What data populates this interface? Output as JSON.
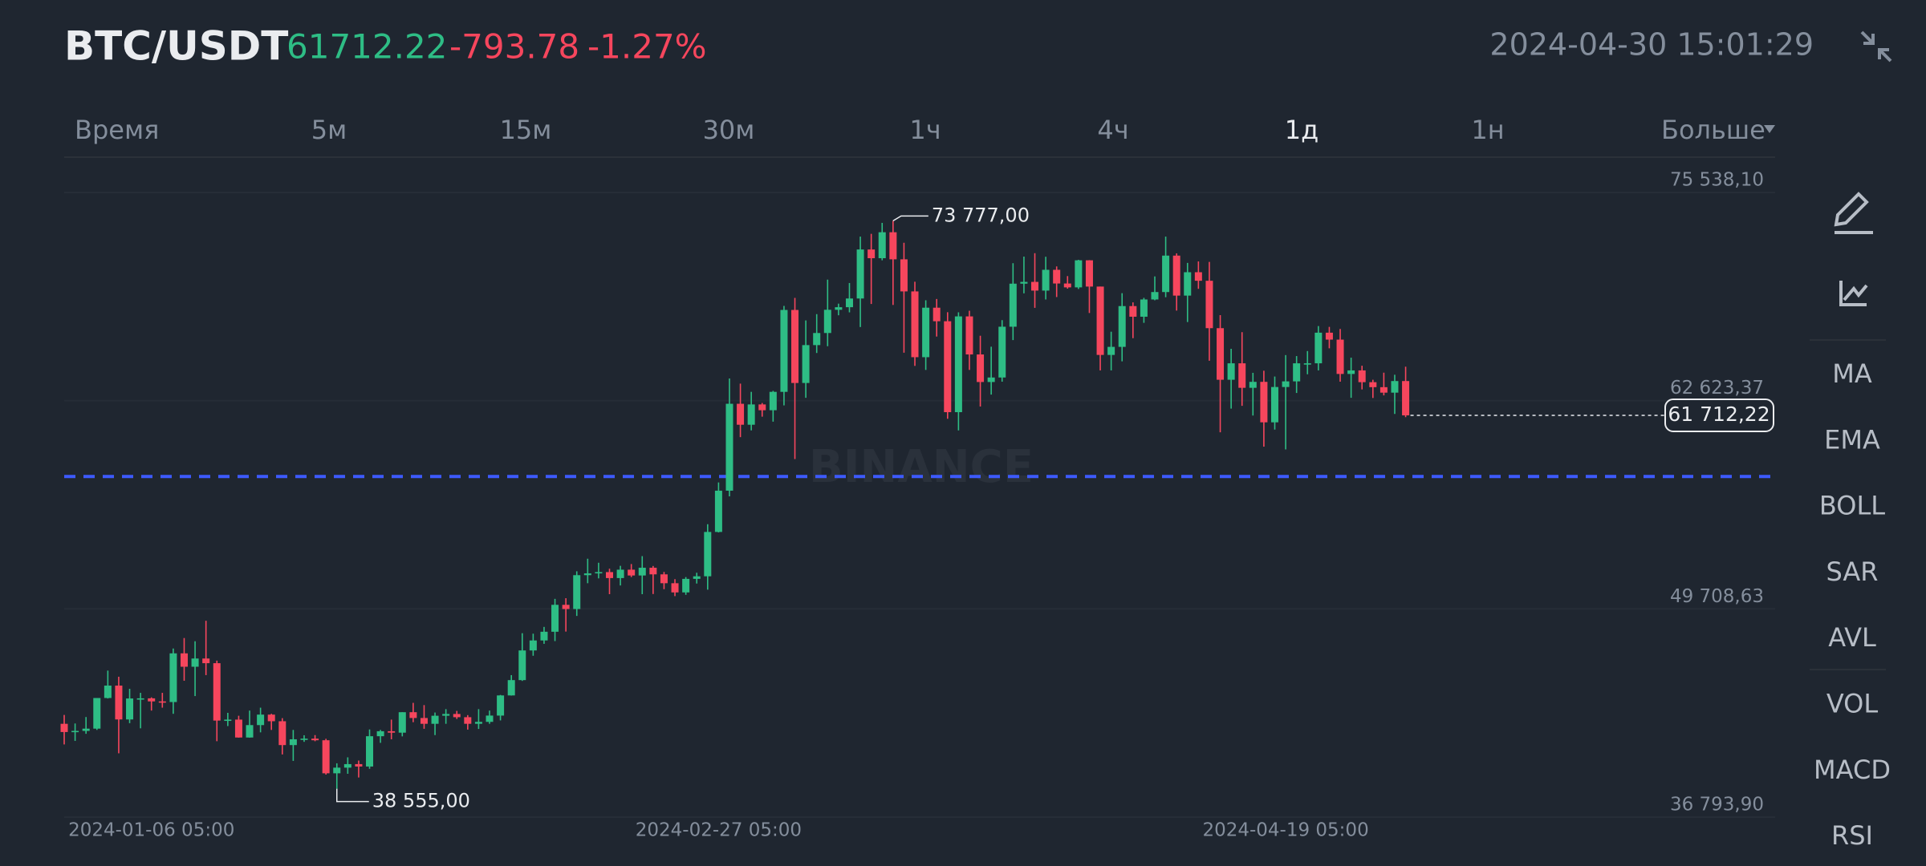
{
  "header": {
    "pair": "BTC/USDT",
    "price": 61712.22,
    "change": -793.78,
    "change_pct": {
      "value": -1.27,
      "label": "-1.27%"
    },
    "datetime": "2024-04-30 15:01:29"
  },
  "toolbar": {
    "timeframes": [
      "Время",
      "5м",
      "15м",
      "30м",
      "1ч",
      "4ч",
      "1д",
      "1н",
      "Больше"
    ],
    "active": "1д"
  },
  "sidebar": {
    "indicators": [
      "MA",
      "EMA",
      "BOLL",
      "SAR",
      "AVL",
      "VOL",
      "MACD",
      "RSI"
    ]
  },
  "watermark": "BINANCE",
  "chart_data": {
    "type": "candlestick",
    "up_color": "#2ebd85",
    "down_color": "#f6465d",
    "ylim": [
      36793.9,
      75538.1
    ],
    "yticks": [
      {
        "value": 36793.9,
        "label": "36 793,90"
      },
      {
        "value": 49708.63,
        "label": "49 708,63"
      },
      {
        "value": 62623.37,
        "label": "62 623,37"
      },
      {
        "value": 75538.1,
        "label": "75 538,10"
      }
    ],
    "xticks": [
      "2024-01-06 05:00",
      "2024-02-27 05:00",
      "2024-04-19 05:00"
    ],
    "high_label": {
      "value": 73777,
      "label": "73 777,00"
    },
    "low_label": {
      "value": 38555,
      "label": "38 555,00"
    },
    "last_price": {
      "value": 61712.22,
      "label": "61 712,22"
    },
    "price_line": {
      "value": 57920,
      "color": "#3d5afe"
    },
    "x": [
      "2023-12-29 05:00",
      "2023-12-30 05:00",
      "2023-12-31 05:00",
      "2024-01-01 05:00",
      "2024-01-02 05:00",
      "2024-01-03 05:00",
      "2024-01-04 05:00",
      "2024-01-05 05:00",
      "2024-01-06 05:00",
      "2024-01-07 05:00",
      "2024-01-08 05:00",
      "2024-01-09 05:00",
      "2024-01-10 05:00",
      "2024-01-11 05:00",
      "2024-01-12 05:00",
      "2024-01-13 05:00",
      "2024-01-14 05:00",
      "2024-01-15 05:00",
      "2024-01-16 05:00",
      "2024-01-17 05:00",
      "2024-01-18 05:00",
      "2024-01-19 05:00",
      "2024-01-20 05:00",
      "2024-01-21 05:00",
      "2024-01-22 05:00",
      "2024-01-23 05:00",
      "2024-01-24 05:00",
      "2024-01-25 05:00",
      "2024-01-26 05:00",
      "2024-01-27 05:00",
      "2024-01-28 05:00",
      "2024-01-29 05:00",
      "2024-01-30 05:00",
      "2024-01-31 05:00",
      "2024-02-01 05:00",
      "2024-02-02 05:00",
      "2024-02-03 05:00",
      "2024-02-04 05:00",
      "2024-02-05 05:00",
      "2024-02-06 05:00",
      "2024-02-07 05:00",
      "2024-02-08 05:00",
      "2024-02-09 05:00",
      "2024-02-10 05:00",
      "2024-02-11 05:00",
      "2024-02-12 05:00",
      "2024-02-13 05:00",
      "2024-02-14 05:00",
      "2024-02-15 05:00",
      "2024-02-16 05:00",
      "2024-02-17 05:00",
      "2024-02-18 05:00",
      "2024-02-19 05:00",
      "2024-02-20 05:00",
      "2024-02-21 05:00",
      "2024-02-22 05:00",
      "2024-02-23 05:00",
      "2024-02-24 05:00",
      "2024-02-25 05:00",
      "2024-02-26 05:00",
      "2024-02-27 05:00",
      "2024-02-28 05:00",
      "2024-02-29 05:00",
      "2024-03-01 05:00",
      "2024-03-02 05:00",
      "2024-03-03 05:00",
      "2024-03-04 05:00",
      "2024-03-05 05:00",
      "2024-03-06 05:00",
      "2024-03-07 05:00",
      "2024-03-08 05:00",
      "2024-03-09 05:00",
      "2024-03-10 05:00",
      "2024-03-11 05:00",
      "2024-03-12 05:00",
      "2024-03-13 05:00",
      "2024-03-14 05:00",
      "2024-03-15 05:00",
      "2024-03-16 05:00",
      "2024-03-17 05:00",
      "2024-03-18 05:00",
      "2024-03-19 05:00",
      "2024-03-20 05:00",
      "2024-03-21 05:00",
      "2024-03-22 05:00",
      "2024-03-23 05:00",
      "2024-03-24 05:00",
      "2024-03-25 05:00",
      "2024-03-26 05:00",
      "2024-03-27 05:00",
      "2024-03-28 05:00",
      "2024-03-29 05:00",
      "2024-03-30 05:00",
      "2024-03-31 05:00",
      "2024-04-01 05:00",
      "2024-04-02 05:00",
      "2024-04-03 05:00",
      "2024-04-04 05:00",
      "2024-04-05 05:00",
      "2024-04-06 05:00",
      "2024-04-07 05:00",
      "2024-04-08 05:00",
      "2024-04-09 05:00",
      "2024-04-10 05:00",
      "2024-04-11 05:00",
      "2024-04-12 05:00",
      "2024-04-13 05:00",
      "2024-04-14 05:00",
      "2024-04-15 05:00",
      "2024-04-16 05:00",
      "2024-04-17 05:00",
      "2024-04-18 05:00",
      "2024-04-19 05:00",
      "2024-04-20 05:00",
      "2024-04-21 05:00",
      "2024-04-22 05:00",
      "2024-04-23 05:00",
      "2024-04-24 05:00",
      "2024-04-25 05:00",
      "2024-04-26 05:00",
      "2024-04-27 05:00",
      "2024-04-28 05:00",
      "2024-04-29 05:00",
      "2024-04-30 05:00"
    ],
    "ohlc": [
      [
        42580,
        43130,
        41300,
        42070
      ],
      [
        42070,
        42600,
        41520,
        42140
      ],
      [
        42140,
        43000,
        41960,
        42280
      ],
      [
        42280,
        44180,
        42200,
        44180
      ],
      [
        44180,
        45880,
        44150,
        44950
      ],
      [
        44950,
        45500,
        40750,
        42850
      ],
      [
        42850,
        44750,
        42620,
        44150
      ],
      [
        44150,
        44500,
        42300,
        44160
      ],
      [
        44160,
        44220,
        43400,
        43970
      ],
      [
        43970,
        44500,
        43580,
        43930
      ],
      [
        43930,
        47250,
        43200,
        46950
      ],
      [
        46950,
        47900,
        45250,
        46120
      ],
      [
        46120,
        47700,
        44300,
        46630
      ],
      [
        46630,
        48970,
        45600,
        46340
      ],
      [
        46340,
        46500,
        41500,
        42780
      ],
      [
        42780,
        43260,
        42440,
        42840
      ],
      [
        42840,
        43080,
        41720,
        41730
      ],
      [
        41730,
        43400,
        41720,
        42500
      ],
      [
        42500,
        43580,
        42050,
        43150
      ],
      [
        43150,
        43200,
        42200,
        42740
      ],
      [
        42740,
        42930,
        40680,
        41260
      ],
      [
        41260,
        42200,
        40280,
        41620
      ],
      [
        41620,
        41870,
        41460,
        41660
      ],
      [
        41660,
        41880,
        41500,
        41560
      ],
      [
        41560,
        41650,
        39430,
        39510
      ],
      [
        39510,
        40130,
        38555,
        39860
      ],
      [
        39860,
        40500,
        39480,
        40080
      ],
      [
        40080,
        40300,
        39250,
        39930
      ],
      [
        39930,
        42230,
        39790,
        41810
      ],
      [
        41810,
        42200,
        41400,
        42120
      ],
      [
        42120,
        42840,
        41620,
        42030
      ],
      [
        42030,
        43300,
        41800,
        43300
      ],
      [
        43300,
        43880,
        42680,
        42940
      ],
      [
        42940,
        43740,
        42270,
        42580
      ],
      [
        42580,
        43280,
        41880,
        43080
      ],
      [
        43080,
        43490,
        42580,
        43190
      ],
      [
        43190,
        43380,
        42880,
        42990
      ],
      [
        42990,
        43120,
        42220,
        42580
      ],
      [
        42580,
        43490,
        42260,
        42700
      ],
      [
        42700,
        43400,
        42580,
        43090
      ],
      [
        43090,
        44370,
        42790,
        44340
      ],
      [
        44340,
        45600,
        44330,
        45290
      ],
      [
        45290,
        48200,
        45240,
        47130
      ],
      [
        47130,
        48170,
        46800,
        47750
      ],
      [
        47750,
        48590,
        47540,
        48290
      ],
      [
        48290,
        50330,
        47710,
        49960
      ],
      [
        49960,
        50370,
        48300,
        49700
      ],
      [
        49700,
        52040,
        49270,
        51800
      ],
      [
        51800,
        52820,
        51300,
        51910
      ],
      [
        51910,
        52570,
        51600,
        51990
      ],
      [
        51990,
        52200,
        50620,
        51620
      ],
      [
        51620,
        52380,
        51160,
        52140
      ],
      [
        52140,
        52490,
        51680,
        51780
      ],
      [
        51780,
        52980,
        50620,
        52260
      ],
      [
        52260,
        52370,
        50630,
        51850
      ],
      [
        51850,
        52000,
        50930,
        51300
      ],
      [
        51300,
        51550,
        50500,
        50730
      ],
      [
        50730,
        51680,
        50580,
        51570
      ],
      [
        51570,
        51950,
        51280,
        51730
      ],
      [
        51730,
        54960,
        50900,
        54480
      ],
      [
        54480,
        57550,
        54450,
        57040
      ],
      [
        57040,
        64000,
        56690,
        62430
      ],
      [
        62430,
        63680,
        60360,
        61130
      ],
      [
        61130,
        63170,
        60780,
        62390
      ],
      [
        62390,
        62480,
        61630,
        62030
      ],
      [
        62030,
        63230,
        61320,
        63170
      ],
      [
        63170,
        68500,
        62330,
        68250
      ],
      [
        68250,
        69000,
        59000,
        63720
      ],
      [
        63720,
        67600,
        62800,
        66070
      ],
      [
        66070,
        67990,
        65580,
        66820
      ],
      [
        66820,
        70130,
        66000,
        68260
      ],
      [
        68260,
        68640,
        67920,
        68420
      ],
      [
        68420,
        69920,
        68100,
        68960
      ],
      [
        68960,
        72800,
        67190,
        72000
      ],
      [
        72000,
        72970,
        68620,
        71460
      ],
      [
        71460,
        73650,
        71330,
        73070
      ],
      [
        73070,
        73777,
        68560,
        71390
      ],
      [
        71390,
        72420,
        65600,
        69400
      ],
      [
        69400,
        70000,
        64780,
        65320
      ],
      [
        65320,
        68850,
        64530,
        68390
      ],
      [
        68390,
        68930,
        66600,
        67550
      ],
      [
        67550,
        68110,
        61500,
        61910
      ],
      [
        61910,
        68100,
        60780,
        67850
      ],
      [
        67850,
        68200,
        64530,
        65490
      ],
      [
        65490,
        66650,
        62260,
        63780
      ],
      [
        63780,
        65970,
        63000,
        64060
      ],
      [
        64060,
        67620,
        63800,
        67210
      ],
      [
        67210,
        71150,
        66380,
        69880
      ],
      [
        69880,
        71560,
        69280,
        69990
      ],
      [
        69990,
        71770,
        68380,
        69450
      ],
      [
        69450,
        71550,
        68900,
        70740
      ],
      [
        70740,
        70950,
        69050,
        69890
      ],
      [
        69890,
        70350,
        69570,
        69650
      ],
      [
        69650,
        71360,
        69550,
        71330
      ],
      [
        71330,
        71340,
        68060,
        69700
      ],
      [
        69700,
        69700,
        64500,
        65460
      ],
      [
        65460,
        66900,
        64500,
        65960
      ],
      [
        65960,
        69290,
        65060,
        68490
      ],
      [
        68490,
        68720,
        66500,
        67830
      ],
      [
        67830,
        69000,
        67450,
        68900
      ],
      [
        68900,
        70330,
        68850,
        69360
      ],
      [
        69360,
        72800,
        69040,
        71620
      ],
      [
        71620,
        71760,
        68210,
        69140
      ],
      [
        69140,
        71170,
        67500,
        70590
      ],
      [
        70590,
        71260,
        69560,
        70060
      ],
      [
        70060,
        71230,
        65100,
        67120
      ],
      [
        67120,
        67930,
        60660,
        63920
      ],
      [
        63920,
        65840,
        62130,
        64940
      ],
      [
        64940,
        66870,
        62300,
        63420
      ],
      [
        63420,
        64350,
        61700,
        63790
      ],
      [
        63790,
        64480,
        59770,
        61280
      ],
      [
        61280,
        64120,
        60830,
        63470
      ],
      [
        63470,
        65450,
        59600,
        63820
      ],
      [
        63820,
        65390,
        63100,
        64940
      ],
      [
        64940,
        65700,
        64260,
        64940
      ],
      [
        64940,
        67250,
        64500,
        66840
      ],
      [
        66840,
        67200,
        65870,
        66410
      ],
      [
        66410,
        67070,
        63800,
        64280
      ],
      [
        64280,
        65290,
        62800,
        64500
      ],
      [
        64500,
        64790,
        63320,
        63770
      ],
      [
        63770,
        63920,
        62790,
        63460
      ],
      [
        63460,
        64360,
        62950,
        63120
      ],
      [
        63120,
        64230,
        61800,
        63840
      ],
      [
        63840,
        64730,
        61600,
        61712.22
      ]
    ]
  }
}
